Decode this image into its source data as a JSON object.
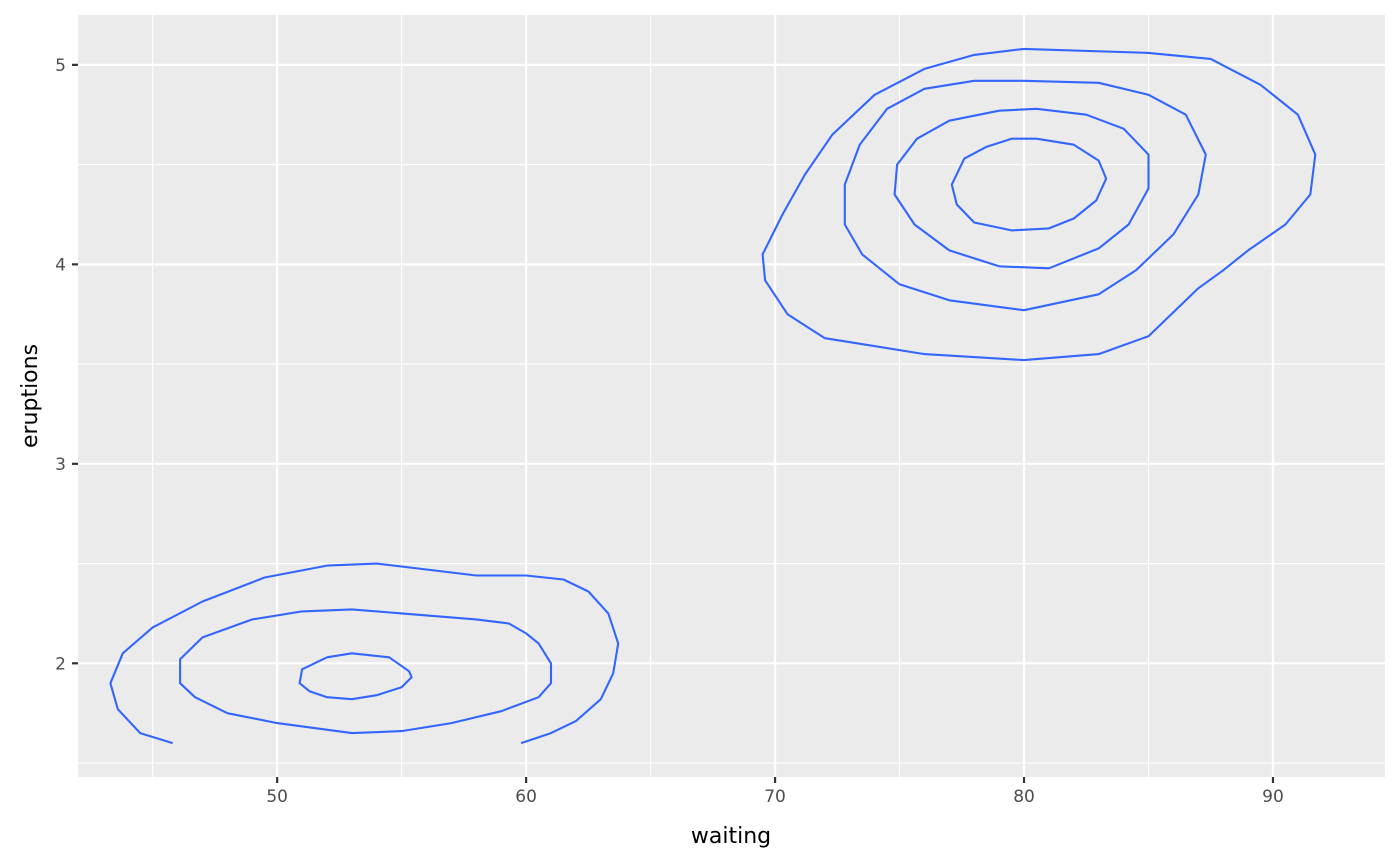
{
  "chart_data": {
    "type": "contour",
    "xlabel": "waiting",
    "ylabel": "eruptions",
    "xlim": [
      42,
      94.5
    ],
    "ylim": [
      1.43,
      5.25
    ],
    "x_major_ticks": [
      50,
      60,
      70,
      80,
      90
    ],
    "x_minor_ticks": [
      45,
      55,
      65,
      75,
      85
    ],
    "y_major_ticks": [
      2,
      3,
      4,
      5
    ],
    "y_minor_ticks": [
      1.5,
      2.5,
      3.5,
      4.5
    ],
    "x_tick_labels": [
      "50",
      "60",
      "70",
      "80",
      "90"
    ],
    "y_tick_labels": [
      "2",
      "3",
      "4",
      "5"
    ],
    "grid": true,
    "line_color": "#3366FF",
    "panel_background": "#EBEBEB",
    "series": [
      {
        "points": [
          [
            45.8,
            1.6
          ],
          [
            44.5,
            1.65
          ],
          [
            43.6,
            1.77
          ],
          [
            43.3,
            1.9
          ],
          [
            43.8,
            2.05
          ],
          [
            45.0,
            2.18
          ],
          [
            47.0,
            2.31
          ],
          [
            49.5,
            2.43
          ],
          [
            52.0,
            2.49
          ],
          [
            54.0,
            2.5
          ],
          [
            56.0,
            2.47
          ],
          [
            58.0,
            2.44
          ],
          [
            60.0,
            2.44
          ],
          [
            61.5,
            2.42
          ],
          [
            62.5,
            2.36
          ],
          [
            63.3,
            2.25
          ],
          [
            63.7,
            2.1
          ],
          [
            63.5,
            1.95
          ],
          [
            63.0,
            1.82
          ],
          [
            62.0,
            1.71
          ],
          [
            61.0,
            1.65
          ],
          [
            59.8,
            1.6
          ]
        ]
      },
      {
        "points": [
          [
            59.3,
            2.2
          ],
          [
            58.0,
            2.22
          ],
          [
            55.0,
            2.25
          ],
          [
            53.0,
            2.27
          ],
          [
            51.0,
            2.26
          ],
          [
            49.0,
            2.22
          ],
          [
            47.0,
            2.13
          ],
          [
            46.1,
            2.02
          ],
          [
            46.1,
            1.9
          ],
          [
            46.7,
            1.83
          ],
          [
            48.0,
            1.75
          ],
          [
            50.0,
            1.7
          ],
          [
            53.0,
            1.65
          ],
          [
            55.0,
            1.66
          ],
          [
            57.0,
            1.7
          ],
          [
            59.0,
            1.76
          ],
          [
            60.5,
            1.83
          ],
          [
            61.0,
            1.9
          ],
          [
            61.0,
            2.0
          ],
          [
            60.5,
            2.1
          ],
          [
            60.0,
            2.15
          ],
          [
            59.3,
            2.2
          ]
        ]
      },
      {
        "points": [
          [
            52.0,
            2.03
          ],
          [
            53.0,
            2.05
          ],
          [
            54.5,
            2.03
          ],
          [
            55.3,
            1.96
          ],
          [
            55.4,
            1.93
          ],
          [
            55.0,
            1.88
          ],
          [
            54.0,
            1.84
          ],
          [
            53.0,
            1.82
          ],
          [
            52.0,
            1.83
          ],
          [
            51.3,
            1.86
          ],
          [
            50.9,
            1.9
          ],
          [
            51.0,
            1.97
          ],
          [
            52.0,
            2.03
          ]
        ]
      },
      {
        "points": [
          [
            80.0,
            5.08
          ],
          [
            85.0,
            5.06
          ],
          [
            87.5,
            5.03
          ],
          [
            89.5,
            4.9
          ],
          [
            91.0,
            4.75
          ],
          [
            91.7,
            4.55
          ],
          [
            91.5,
            4.35
          ],
          [
            90.5,
            4.2
          ],
          [
            89.0,
            4.07
          ],
          [
            88.0,
            3.97
          ],
          [
            87.0,
            3.88
          ],
          [
            85.0,
            3.64
          ],
          [
            83.0,
            3.55
          ],
          [
            80.0,
            3.52
          ],
          [
            76.0,
            3.55
          ],
          [
            72.0,
            3.63
          ],
          [
            70.5,
            3.75
          ],
          [
            69.6,
            3.92
          ],
          [
            69.5,
            4.05
          ],
          [
            70.3,
            4.25
          ],
          [
            71.2,
            4.45
          ],
          [
            72.3,
            4.65
          ],
          [
            74.0,
            4.85
          ],
          [
            76.0,
            4.98
          ],
          [
            78.0,
            5.05
          ],
          [
            80.0,
            5.08
          ]
        ]
      },
      {
        "points": [
          [
            80.0,
            4.92
          ],
          [
            83.0,
            4.91
          ],
          [
            85.0,
            4.85
          ],
          [
            86.5,
            4.75
          ],
          [
            87.3,
            4.55
          ],
          [
            87.0,
            4.35
          ],
          [
            86.0,
            4.15
          ],
          [
            84.5,
            3.97
          ],
          [
            83.0,
            3.85
          ],
          [
            80.0,
            3.77
          ],
          [
            77.0,
            3.82
          ],
          [
            75.0,
            3.9
          ],
          [
            73.5,
            4.05
          ],
          [
            72.8,
            4.2
          ],
          [
            72.8,
            4.4
          ],
          [
            73.4,
            4.6
          ],
          [
            74.5,
            4.78
          ],
          [
            76.0,
            4.88
          ],
          [
            78.0,
            4.92
          ],
          [
            80.0,
            4.92
          ]
        ]
      },
      {
        "points": [
          [
            80.5,
            4.78
          ],
          [
            82.5,
            4.75
          ],
          [
            84.0,
            4.68
          ],
          [
            85.0,
            4.55
          ],
          [
            85.0,
            4.38
          ],
          [
            84.2,
            4.2
          ],
          [
            83.0,
            4.08
          ],
          [
            81.0,
            3.98
          ],
          [
            79.0,
            3.99
          ],
          [
            77.0,
            4.07
          ],
          [
            75.6,
            4.2
          ],
          [
            74.8,
            4.35
          ],
          [
            74.9,
            4.5
          ],
          [
            75.7,
            4.63
          ],
          [
            77.0,
            4.72
          ],
          [
            79.0,
            4.77
          ],
          [
            80.5,
            4.78
          ]
        ]
      },
      {
        "points": [
          [
            80.5,
            4.63
          ],
          [
            82.0,
            4.6
          ],
          [
            83.0,
            4.52
          ],
          [
            83.3,
            4.43
          ],
          [
            82.9,
            4.32
          ],
          [
            82.0,
            4.23
          ],
          [
            81.0,
            4.18
          ],
          [
            79.5,
            4.17
          ],
          [
            78.0,
            4.21
          ],
          [
            77.3,
            4.3
          ],
          [
            77.1,
            4.4
          ],
          [
            77.6,
            4.53
          ],
          [
            78.5,
            4.59
          ],
          [
            79.5,
            4.63
          ],
          [
            80.5,
            4.63
          ]
        ]
      }
    ]
  }
}
